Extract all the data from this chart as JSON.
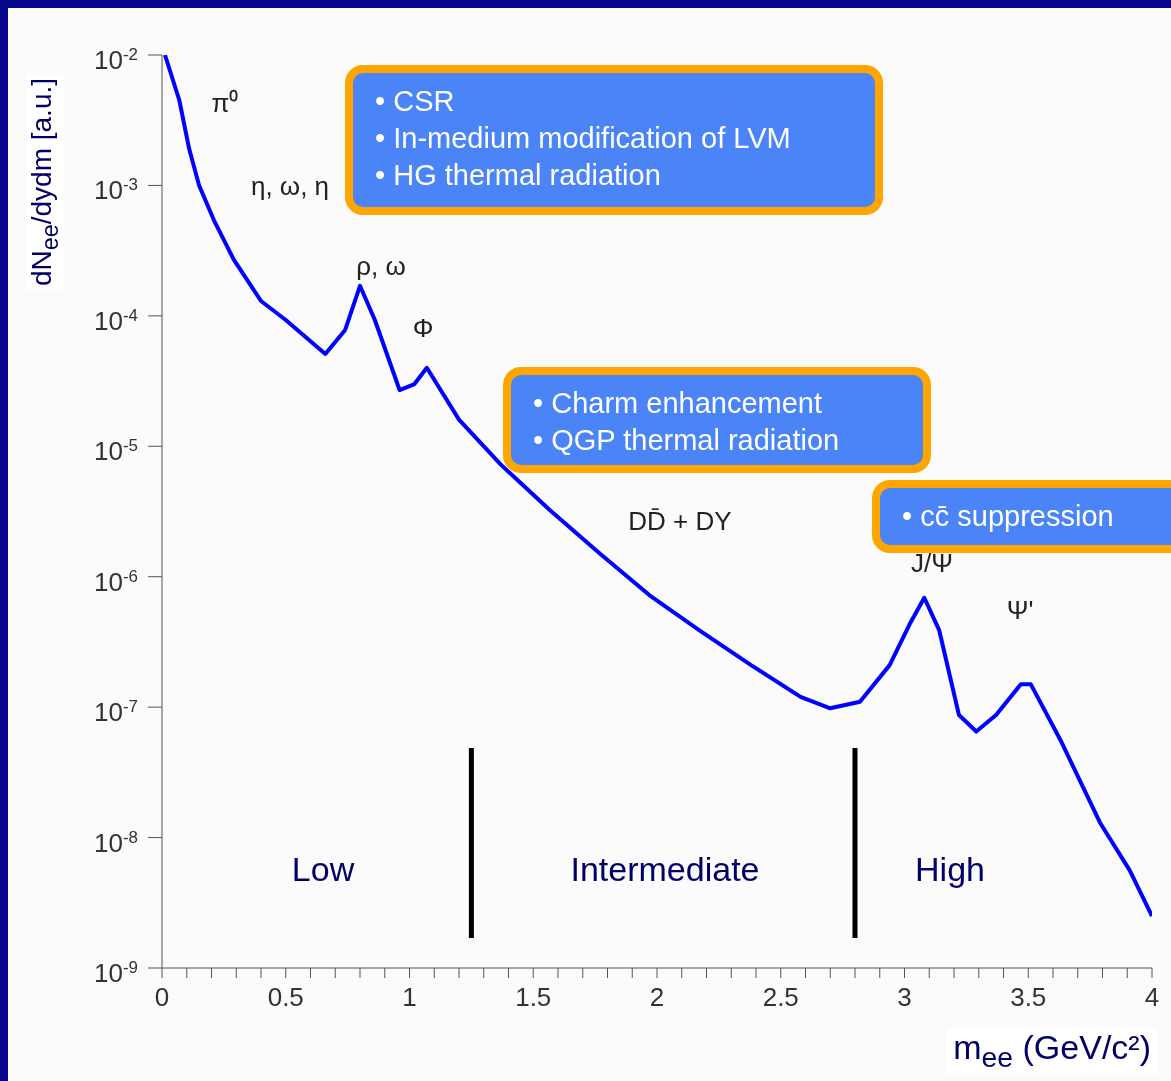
{
  "chart_data": {
    "type": "line",
    "xlabel": "m$_{ee}$ (GeV/c²)",
    "ylabel": "dN$_{ee}$/dydm [a.u.]",
    "color": "#0000ff",
    "marker": "none",
    "log": true,
    "x": [
      0.012,
      0.07,
      0.11,
      0.15,
      0.21,
      0.29,
      0.4,
      0.5,
      0.66,
      0.74,
      0.8,
      0.86,
      0.96,
      1.02,
      1.07,
      1.2,
      1.37,
      1.57,
      1.77,
      1.97,
      2.17,
      2.38,
      2.58,
      2.7,
      2.82,
      2.94,
      3.02,
      3.08,
      3.14,
      3.22,
      3.29,
      3.37,
      3.47,
      3.51,
      3.63,
      3.79,
      3.91,
      4.0
    ],
    "values": [
      0.01,
      0.0045,
      0.0019,
      0.001,
      0.00054,
      0.00027,
      0.00013,
      9.3e-05,
      5.1e-05,
      7.8e-05,
      0.00017,
      9.3e-05,
      2.7e-05,
      3e-05,
      4e-05,
      1.6e-05,
      7.2e-06,
      3.2e-06,
      1.5e-06,
      7.2e-07,
      3.9e-07,
      2.1e-07,
      1.2e-07,
      9.8e-08,
      1.1e-07,
      2.1e-07,
      4.3e-07,
      6.9e-07,
      3.9e-07,
      8.7e-08,
      6.5e-08,
      8.7e-08,
      1.5e-07,
      1.5e-07,
      5.6e-08,
      1.3e-08,
      5.6e-09,
      2.5e-09
    ],
    "xlim": [
      0,
      4
    ],
    "xticks": [
      0,
      {
        "value": 0.1,
        "label": null
      },
      {
        "value": 0.2,
        "label": null
      },
      {
        "value": 0.3,
        "label": null
      },
      {
        "value": 0.4,
        "label": null
      },
      0.5,
      {
        "value": 0.6,
        "label": null
      },
      {
        "value": 0.7,
        "label": null
      },
      {
        "value": 0.8,
        "label": null
      },
      {
        "value": 0.9,
        "label": null
      },
      1,
      {
        "value": 1.1,
        "label": null
      },
      {
        "value": 1.2,
        "label": null
      },
      {
        "value": 1.3,
        "label": null
      },
      {
        "value": 1.4,
        "label": null
      },
      1.5,
      {
        "value": 1.6,
        "label": null
      },
      {
        "value": 1.7,
        "label": null
      },
      {
        "value": 1.8,
        "label": null
      },
      {
        "value": 1.9,
        "label": null
      },
      2,
      {
        "value": 2.1,
        "label": null
      },
      {
        "value": 2.2,
        "label": null
      },
      {
        "value": 2.3,
        "label": null
      },
      {
        "value": 2.4,
        "label": null
      },
      2.5,
      {
        "value": 2.6,
        "label": null
      },
      {
        "value": 2.7,
        "label": null
      },
      {
        "value": 2.8,
        "label": null
      },
      {
        "value": 2.9,
        "label": null
      },
      3,
      {
        "value": 3.1,
        "label": null
      },
      {
        "value": 3.2,
        "label": null
      },
      {
        "value": 3.3,
        "label": null
      },
      {
        "value": 3.4,
        "label": null
      },
      3.5,
      {
        "value": 3.6,
        "label": null
      },
      {
        "value": 3.7,
        "label": null
      },
      {
        "value": 3.8,
        "label": null
      },
      {
        "value": 3.9,
        "label": null
      },
      4
    ],
    "ylim": [
      1e-09,
      0.01
    ],
    "yticks": [
      {
        "value": 1e-09,
        "label": "10$^{-9}$"
      },
      {
        "value": 1e-08,
        "label": "10$^{-8}$"
      },
      {
        "value": 1e-07,
        "label": "10$^{-7}$"
      },
      {
        "value": 1e-06,
        "label": "10$^{-6}$"
      },
      {
        "value": 1e-05,
        "label": "10$^{-5}$"
      },
      {
        "value": 0.0001,
        "label": "10$^{-4}$"
      },
      {
        "value": 0.001,
        "label": "10$^{-3}$"
      },
      {
        "value": 0.01,
        "label": "10$^{-2}$"
      }
    ],
    "ref_lines": [
      {
        "axis": "x",
        "value": 1.25,
        "color": "#000000"
      },
      {
        "axis": "x",
        "value": 2.8,
        "color": "#000000"
      }
    ],
    "annotations": [
      "π⁰",
      "η, ω, η",
      "ρ, ω",
      "Φ",
      "DD̄ + DY",
      "J/Ψ",
      "Ψ'",
      "Low",
      "Intermediate",
      "High",
      "• CSR\n• In-medium modification of LVM\n• HG thermal radiation",
      "• Charm enhancement\n• QGP thermal radiation",
      "• cc̄ suppression"
    ]
  }
}
